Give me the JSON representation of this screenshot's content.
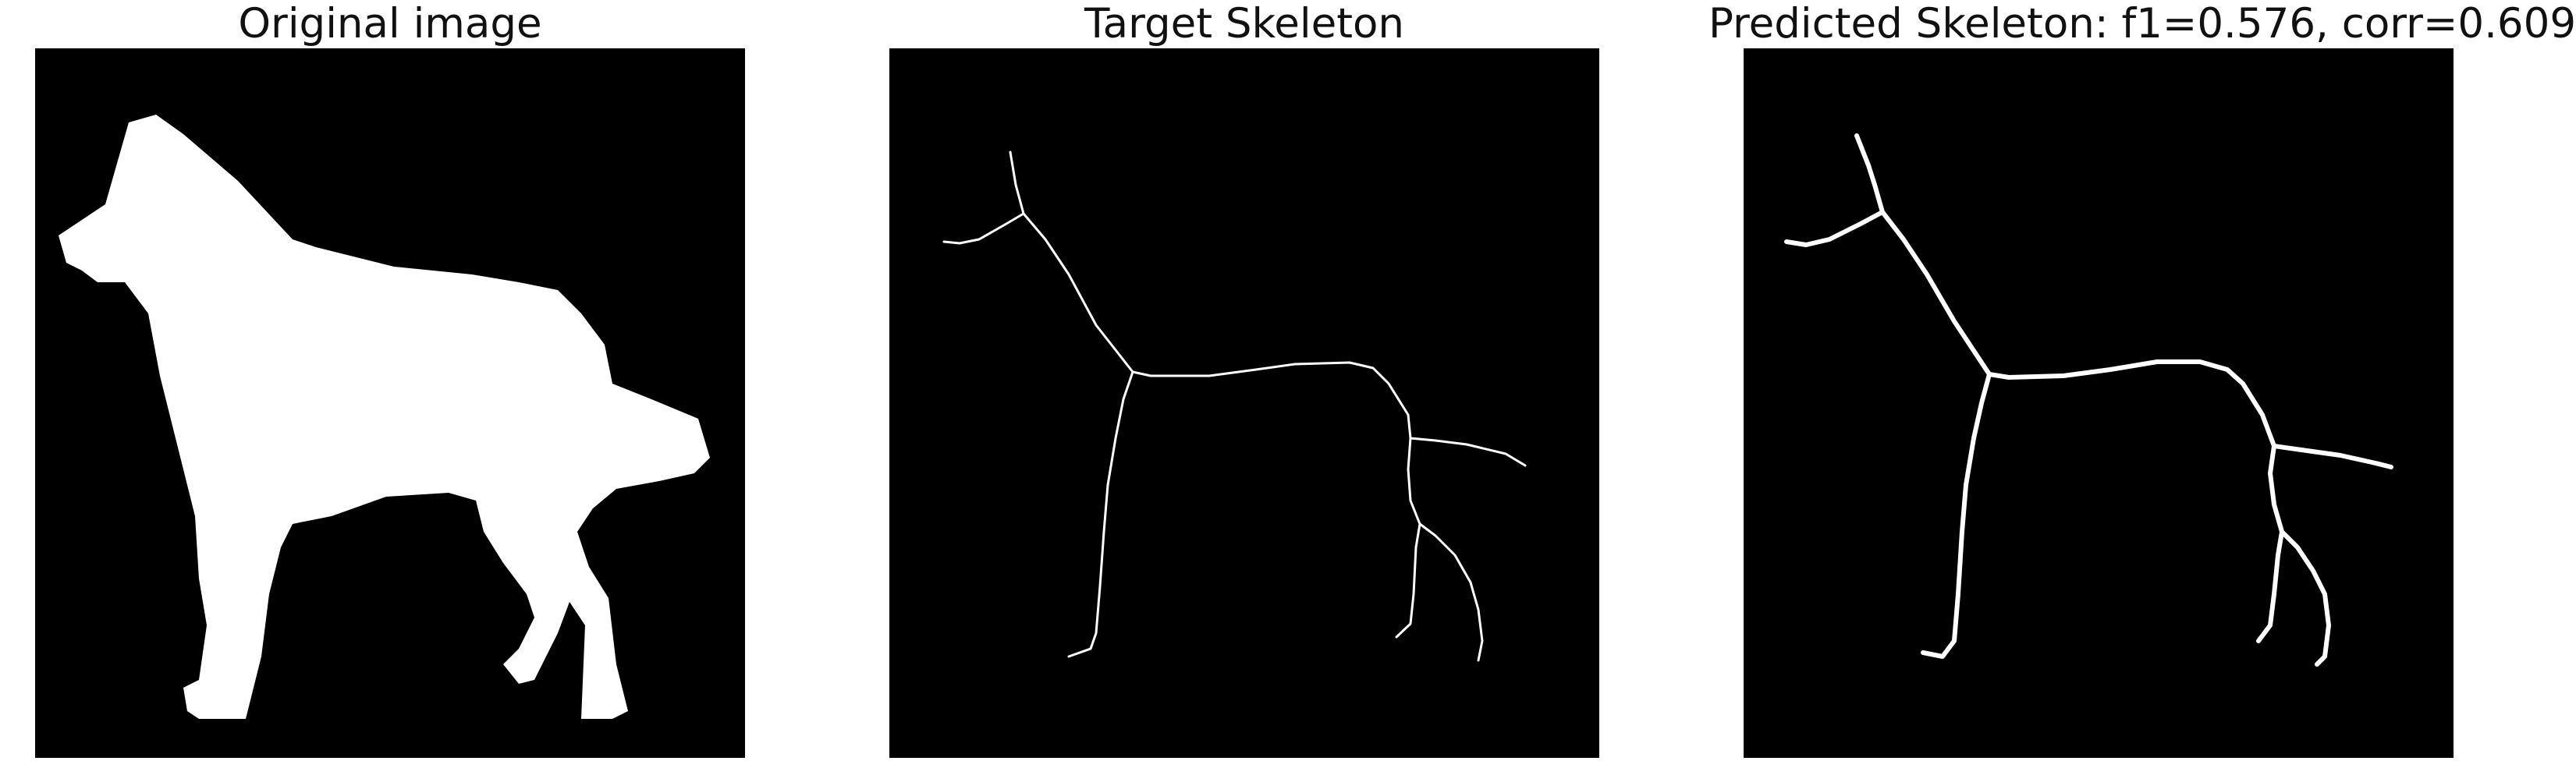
{
  "panels": [
    {
      "title": "Original image"
    },
    {
      "title": "Target Skeleton"
    },
    {
      "title": "Predicted Skeleton: f1=0.576, corr=0.609"
    }
  ]
}
